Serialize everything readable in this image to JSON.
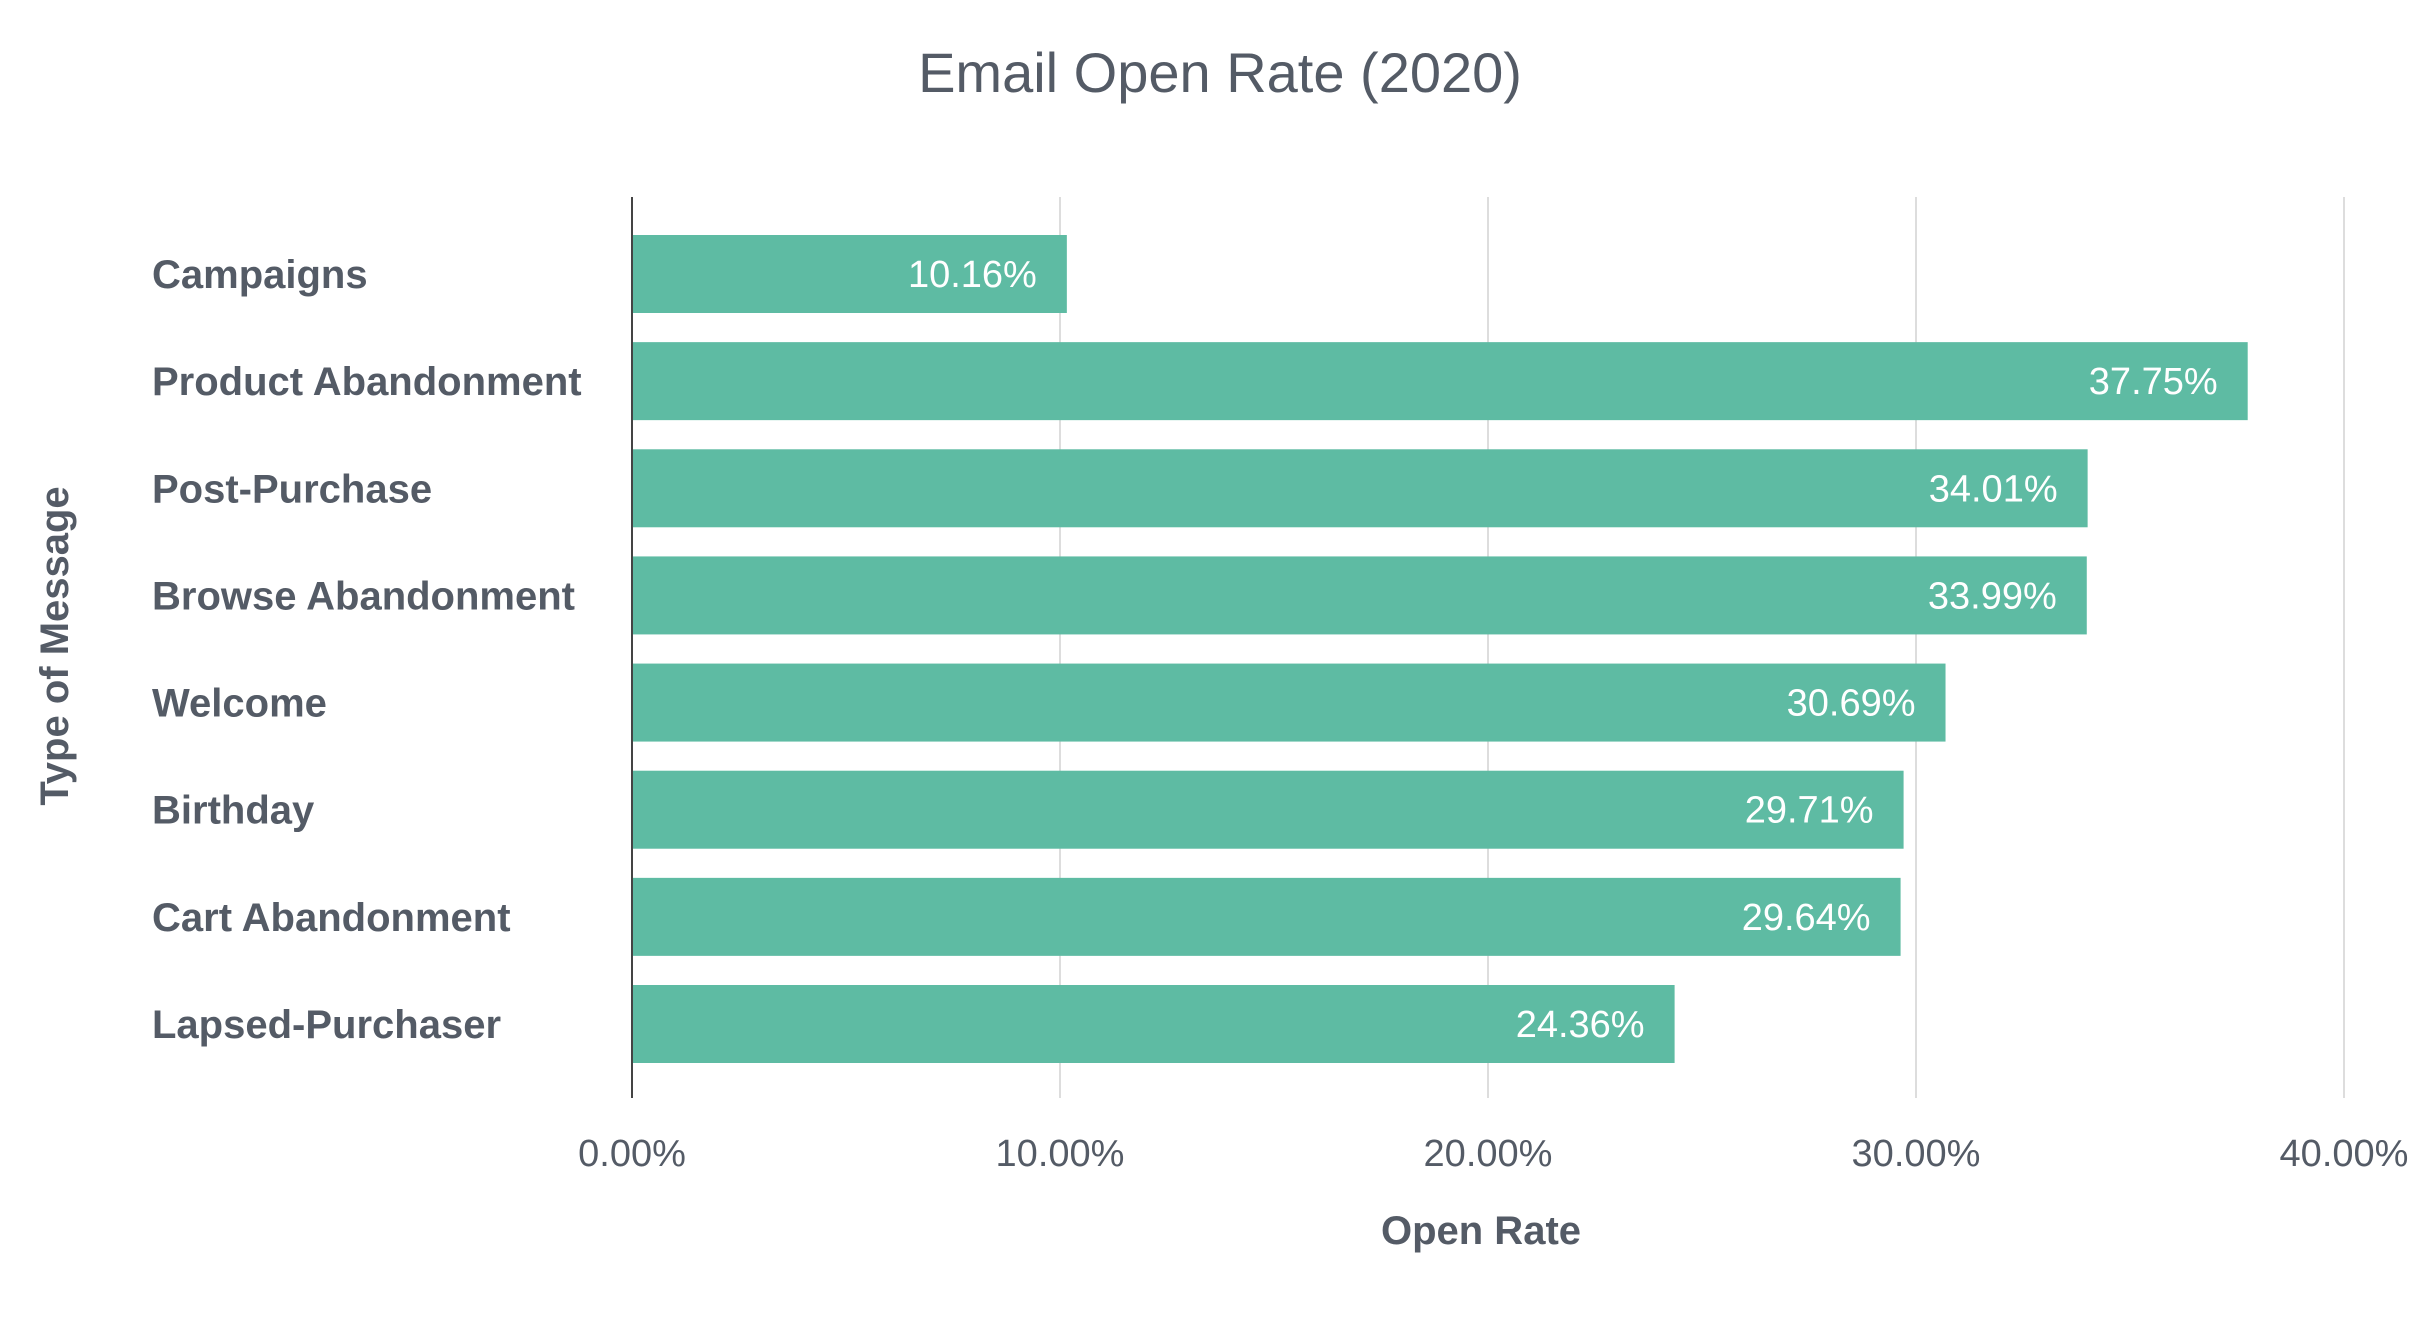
{
  "chart_data": {
    "type": "bar",
    "orientation": "horizontal",
    "title": "Email Open Rate (2020)",
    "xlabel": "Open Rate",
    "ylabel": "Type of Message",
    "categories": [
      "Campaigns",
      "Product Abandonment",
      "Post-Purchase",
      "Browse Abandonment",
      "Welcome",
      "Birthday",
      "Cart Abandonment",
      "Lapsed-Purchaser"
    ],
    "values": [
      10.16,
      37.75,
      34.01,
      33.99,
      30.69,
      29.71,
      29.64,
      24.36
    ],
    "data_labels": [
      "10.16%",
      "37.75%",
      "34.01%",
      "33.99%",
      "30.69%",
      "29.71%",
      "29.64%",
      "24.36%"
    ],
    "x_ticks": [
      0,
      10,
      20,
      30,
      40
    ],
    "x_tick_labels": [
      "0.00%",
      "10.00%",
      "20.00%",
      "30.00%",
      "40.00%"
    ],
    "xlim": [
      0,
      40
    ],
    "grid": true,
    "legend": "none",
    "colors": {
      "bar": "#5EBBA3",
      "text": "#545B66",
      "grid": "#DDDDDD",
      "axis": "#444444",
      "bar_label": "#FFFFFF"
    }
  }
}
